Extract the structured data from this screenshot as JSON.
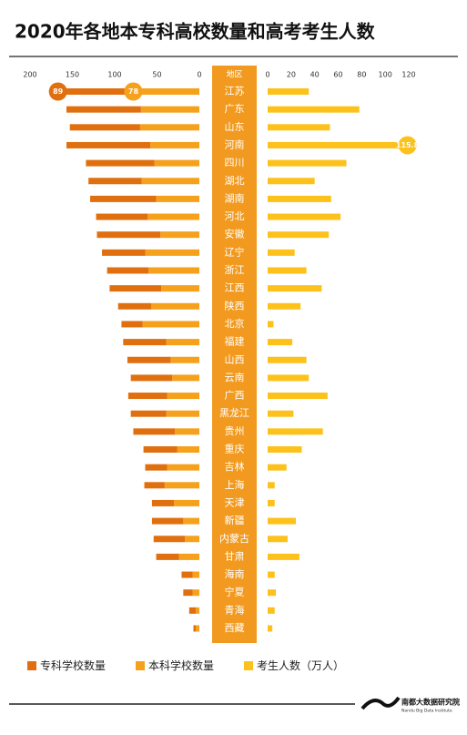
{
  "chart_data": {
    "type": "butterfly",
    "title": "2020年各地本专科高校数量和高考考生人数",
    "category_header": "地区",
    "categories": [
      "江苏",
      "广东",
      "山东",
      "河南",
      "四川",
      "湖北",
      "湖南",
      "河北",
      "安徽",
      "辽宁",
      "浙江",
      "江西",
      "陕西",
      "北京",
      "福建",
      "山西",
      "云南",
      "广西",
      "黑龙江",
      "贵州",
      "重庆",
      "吉林",
      "上海",
      "天津",
      "新疆",
      "内蒙古",
      "甘肃",
      "海南",
      "宁夏",
      "青海",
      "西藏"
    ],
    "xlim": [
      200,
      0
    ],
    "xticks": [
      200,
      150,
      100,
      50,
      0
    ],
    "x2lim": [
      0,
      120
    ],
    "x2ticks": [
      0,
      20,
      40,
      60,
      80,
      100,
      120
    ],
    "series": [
      {
        "name": "专科学校数量",
        "color": "#e0700f",
        "axis": "x",
        "stacked": true,
        "values": [
          89,
          88,
          83,
          99,
          81,
          63,
          78,
          61,
          75,
          51,
          49,
          61,
          39,
          25,
          51,
          51,
          49,
          46,
          42,
          49,
          40,
          26,
          24,
          26,
          37,
          37,
          27,
          13,
          11,
          8,
          3
        ],
        "value_labels": [
          "89",
          null,
          null,
          null,
          null,
          null,
          null,
          null,
          null,
          null,
          null,
          null,
          null,
          null,
          null,
          null,
          null,
          null,
          null,
          null,
          null,
          null,
          null,
          null,
          null,
          null,
          null,
          null,
          null,
          null,
          null
        ]
      },
      {
        "name": "本科学校数量",
        "color": "#f5a11c",
        "axis": "x",
        "stacked": true,
        "values": [
          78,
          69,
          70,
          58,
          53,
          68,
          51,
          61,
          46,
          64,
          60,
          45,
          57,
          67,
          39,
          34,
          32,
          38,
          39,
          29,
          26,
          38,
          41,
          30,
          19,
          17,
          24,
          8,
          8,
          4,
          4
        ],
        "value_labels": [
          "78",
          null,
          null,
          null,
          null,
          null,
          null,
          null,
          null,
          null,
          null,
          null,
          null,
          null,
          null,
          null,
          null,
          null,
          null,
          null,
          null,
          null,
          null,
          null,
          null,
          null,
          null,
          null,
          null,
          null,
          null
        ]
      },
      {
        "name": "考生人数（万人）",
        "color": "#fcc21b",
        "axis": "x2",
        "values": [
          35,
          78,
          53,
          115.8,
          67,
          40,
          54,
          62,
          52,
          23,
          33,
          46,
          28,
          5,
          21,
          33,
          35,
          51,
          22,
          47,
          29,
          16,
          6,
          6,
          24,
          17,
          27,
          6,
          7,
          6,
          4
        ],
        "value_labels": [
          null,
          null,
          null,
          "115.8",
          null,
          null,
          null,
          null,
          null,
          null,
          null,
          null,
          null,
          null,
          null,
          null,
          null,
          null,
          null,
          null,
          null,
          null,
          null,
          null,
          null,
          null,
          null,
          null,
          null,
          null,
          null
        ]
      }
    ]
  },
  "brand": {
    "name": "南都大数据研究院",
    "subtitle": "Nandu Big Data Institute"
  }
}
